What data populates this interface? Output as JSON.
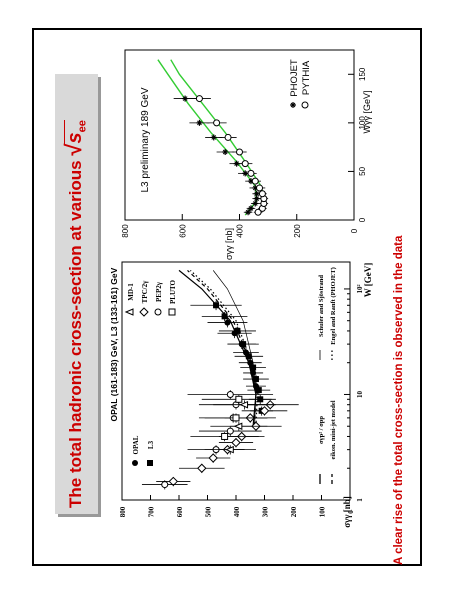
{
  "title": "The total hadronic cross-section at various √s",
  "title_main": "The total hadronic cross-section at various ",
  "title_sqrt_symbol": "√",
  "title_sqrt_var": "s",
  "title_sqrt_sub": "ee",
  "footnote": "A clear rise of the total cross-section is observed in the data",
  "colors": {
    "title": "#cc0000",
    "title_box": "#d9d9d9",
    "fit_curve": "#33cc33"
  },
  "chart_data": [
    {
      "type": "scatter",
      "panel": "left",
      "header_line1": "OPAL (161-183) GeV,",
      "header_line2": "L3 (133-161) GeV",
      "xlabel": "W [GeV]",
      "ylabel": "σγγ [nb]",
      "xscale": "log",
      "xlim": [
        1,
        180
      ],
      "ylim": [
        0,
        800
      ],
      "x_ticks": [
        1,
        10,
        100
      ],
      "x_tick_labels": [
        "1",
        "10",
        "10²"
      ],
      "y_ticks": [
        0,
        100,
        200,
        300,
        400,
        500,
        600,
        700,
        800
      ],
      "legend_experiments": [
        "OPAL",
        "L3"
      ],
      "legend_others": [
        "MD-1",
        "TPC/2γ",
        "PEP2γ",
        "PLUTO"
      ],
      "legend_models": [
        {
          "label": "σγp² / σpp",
          "style": "solid"
        },
        {
          "label": "eikon. mini-jet model",
          "style": "dashed"
        },
        {
          "label": "Schuler and Sjöstrand",
          "style": "solid-thin"
        },
        {
          "label": "Engel and Ranft (PHOJET)",
          "style": "dotted"
        }
      ],
      "series": [
        {
          "name": "OPAL",
          "marker": "filled-circle",
          "points": [
            [
              12,
              330,
              35
            ],
            [
              16,
              340,
              35
            ],
            [
              20,
              350,
              40
            ],
            [
              25,
              365,
              45
            ],
            [
              30,
              380,
              50
            ],
            [
              38,
              405,
              60
            ],
            [
              48,
              430,
              70
            ]
          ]
        },
        {
          "name": "L3",
          "marker": "filled-square",
          "points": [
            [
              7,
              310,
              40
            ],
            [
              9,
              315,
              40
            ],
            [
              11,
              320,
              40
            ],
            [
              14,
              330,
              45
            ],
            [
              18,
              340,
              45
            ],
            [
              23,
              355,
              50
            ],
            [
              30,
              375,
              55
            ],
            [
              40,
              395,
              65
            ],
            [
              55,
              440,
              80
            ],
            [
              70,
              470,
              90
            ]
          ]
        },
        {
          "name": "TPC/2γ",
          "marker": "open-diamond",
          "points": [
            [
              1.5,
              620,
              60
            ],
            [
              2,
              520,
              80
            ],
            [
              2.5,
              480,
              60
            ],
            [
              3,
              430,
              60
            ],
            [
              3.5,
              400,
              60
            ],
            [
              4,
              380,
              80
            ],
            [
              5,
              330,
              90
            ],
            [
              6,
              350,
              90
            ],
            [
              7,
              300,
              80
            ],
            [
              8,
              280,
              100
            ]
          ]
        },
        {
          "name": "PEP2γ",
          "marker": "open-circle",
          "points": [
            [
              1.4,
              650,
              80
            ],
            [
              3,
              470,
              100
            ],
            [
              4.5,
              420,
              110
            ],
            [
              6,
              410,
              120
            ],
            [
              8,
              400,
              130
            ],
            [
              10,
              420,
              150
            ]
          ]
        },
        {
          "name": "MD-1",
          "marker": "open-triangle",
          "points": [
            [
              3,
              420,
              90
            ],
            [
              5,
              390,
              100
            ],
            [
              8,
              370,
              110
            ]
          ]
        },
        {
          "name": "PLUTO",
          "marker": "open-square",
          "points": [
            [
              4,
              440,
              120
            ],
            [
              6,
              400,
              110
            ],
            [
              9,
              390,
              130
            ]
          ]
        }
      ],
      "curves": [
        {
          "name": "σγp² / σpp",
          "style": "solid",
          "points": [
            [
              5,
              340
            ],
            [
              10,
              330
            ],
            [
              20,
              355
            ],
            [
              50,
              420
            ],
            [
              100,
              520
            ],
            [
              150,
              600
            ]
          ]
        },
        {
          "name": "eikon. mini-jet model",
          "style": "dashed",
          "points": [
            [
              5,
              335
            ],
            [
              10,
              330
            ],
            [
              20,
              350
            ],
            [
              50,
              410
            ],
            [
              100,
              500
            ],
            [
              150,
              570
            ]
          ]
        },
        {
          "name": "Schuler and Sjöstrand",
          "style": "solid-thin",
          "points": [
            [
              5,
              335
            ],
            [
              10,
              330
            ],
            [
              20,
              340
            ],
            [
              50,
              375
            ],
            [
              100,
              430
            ],
            [
              150,
              480
            ]
          ]
        },
        {
          "name": "Engel and Ranft (PHOJET)",
          "style": "dotted",
          "points": [
            [
              5,
              330
            ],
            [
              10,
              325
            ],
            [
              20,
              345
            ],
            [
              50,
              400
            ],
            [
              100,
              490
            ],
            [
              150,
              560
            ]
          ]
        }
      ]
    },
    {
      "type": "scatter",
      "panel": "right",
      "title": "L3 preliminary 189 GeV",
      "xlabel": "Wγγ [GeV]",
      "ylabel": "σγγ [nb]",
      "xlim": [
        0,
        175
      ],
      "ylim": [
        0,
        800
      ],
      "x_ticks": [
        0,
        50,
        100,
        150
      ],
      "y_ticks": [
        0,
        200,
        400,
        600,
        800
      ],
      "legend": [
        "PHOJET",
        "PYTHIA"
      ],
      "series": [
        {
          "name": "PHOJET",
          "marker": "star",
          "points": [
            [
              8,
              370
            ],
            [
              12,
              360
            ],
            [
              17,
              345
            ],
            [
              22,
              340
            ],
            [
              27,
              340
            ],
            [
              33,
              345
            ],
            [
              40,
              360
            ],
            [
              48,
              380
            ],
            [
              58,
              410
            ],
            [
              70,
              450
            ],
            [
              85,
              490
            ],
            [
              100,
              540
            ],
            [
              125,
              590
            ]
          ],
          "errors": [
            15,
            15,
            15,
            15,
            15,
            20,
            20,
            25,
            25,
            30,
            30,
            35,
            40
          ]
        },
        {
          "name": "PYTHIA",
          "marker": "open-circle",
          "points": [
            [
              8,
              335
            ],
            [
              12,
              320
            ],
            [
              17,
              315
            ],
            [
              22,
              315
            ],
            [
              27,
              320
            ],
            [
              33,
              330
            ],
            [
              40,
              345
            ],
            [
              48,
              360
            ],
            [
              58,
              380
            ],
            [
              70,
              400
            ],
            [
              85,
              440
            ],
            [
              100,
              480
            ],
            [
              125,
              540
            ]
          ],
          "errors": [
            15,
            15,
            15,
            15,
            15,
            20,
            20,
            20,
            25,
            25,
            30,
            35,
            40
          ]
        }
      ],
      "fits": [
        {
          "name": "PHOJET fit",
          "points": [
            [
              5,
              380
            ],
            [
              20,
              340
            ],
            [
              35,
              345
            ],
            [
              60,
              410
            ],
            [
              90,
              500
            ],
            [
              120,
              580
            ],
            [
              150,
              650
            ],
            [
              165,
              685
            ]
          ]
        },
        {
          "name": "PYTHIA fit",
          "points": [
            [
              5,
              340
            ],
            [
              20,
              312
            ],
            [
              35,
              325
            ],
            [
              60,
              380
            ],
            [
              90,
              450
            ],
            [
              120,
              530
            ],
            [
              150,
              610
            ],
            [
              165,
              640
            ]
          ]
        }
      ]
    }
  ]
}
